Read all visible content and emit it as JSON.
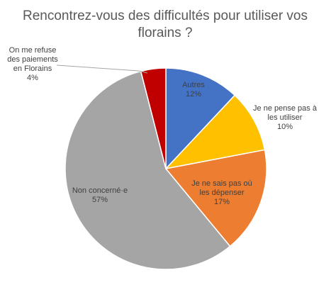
{
  "chart_data": {
    "type": "pie",
    "title_lines": [
      "Rencontrez-vous des difficultés pour utiliser vos",
      "florains ?"
    ],
    "slices": [
      {
        "name_lines": [
          "Autres"
        ],
        "percent_label": "12%",
        "value": 12,
        "color": "#4472c4"
      },
      {
        "name_lines": [
          "Je ne pense pas à",
          "les utiliser"
        ],
        "percent_label": "10%",
        "value": 10,
        "color": "#ffc000"
      },
      {
        "name_lines": [
          "Je ne sais pas où",
          "les dépenser"
        ],
        "percent_label": "17%",
        "value": 17,
        "color": "#ed7d31"
      },
      {
        "name_lines": [
          "Non concerné·e"
        ],
        "percent_label": "57%",
        "value": 57,
        "color": "#a5a5a5"
      },
      {
        "name_lines": [
          "On me refuse",
          "des paiements",
          "en Florains"
        ],
        "percent_label": "4%",
        "value": 4,
        "color": "#c00000"
      }
    ],
    "legend": "none",
    "data_labels": "category-and-percent"
  }
}
